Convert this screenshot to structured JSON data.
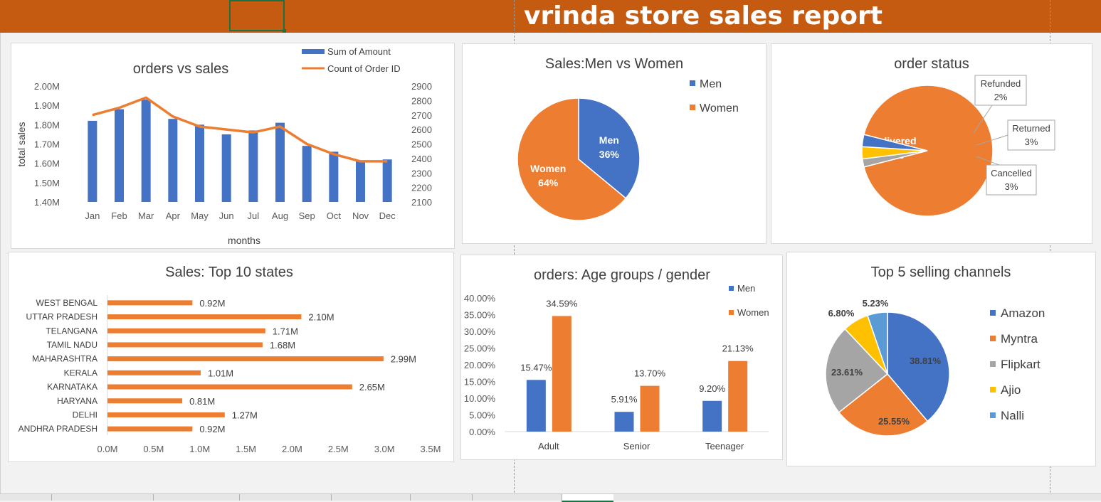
{
  "report": {
    "title": "vrinda store sales report"
  },
  "colors": {
    "banner": "#c55a11",
    "blue": "#4472c4",
    "orange": "#ed7d31",
    "gray": "#a5a5a5",
    "yellow": "#ffc000",
    "lightblue": "#5b9bd5"
  },
  "sheet_tabs": [
    "",
    "",
    "",
    "",
    "",
    "",
    ""
  ],
  "chart_data": [
    {
      "id": "orders-vs-sales",
      "type": "bar",
      "title": "orders vs sales",
      "xlabel": "months",
      "ylabel": "total sales",
      "categories": [
        "Jan",
        "Feb",
        "Mar",
        "Apr",
        "May",
        "Jun",
        "Jul",
        "Aug",
        "Sep",
        "Oct",
        "Nov",
        "Dec"
      ],
      "series": [
        {
          "name": "Sum of Amount",
          "type": "bar",
          "axis": "left",
          "values": [
            1.82,
            1.88,
            1.93,
            1.83,
            1.8,
            1.75,
            1.77,
            1.81,
            1.69,
            1.66,
            1.61,
            1.62
          ]
        },
        {
          "name": "Count of Order ID",
          "type": "line",
          "axis": "right",
          "values": [
            2700,
            2750,
            2820,
            2690,
            2620,
            2600,
            2580,
            2620,
            2500,
            2430,
            2380,
            2380
          ]
        }
      ],
      "ylim": [
        1.4,
        2.0
      ],
      "yticks": [
        "1.40M",
        "1.50M",
        "1.60M",
        "1.70M",
        "1.80M",
        "1.90M",
        "2.00M"
      ],
      "y2lim": [
        2100,
        2900
      ],
      "y2ticks": [
        "2100",
        "2200",
        "2300",
        "2400",
        "2500",
        "2600",
        "2700",
        "2800",
        "2900"
      ],
      "legend": "top-right"
    },
    {
      "id": "sales-men-women",
      "type": "pie",
      "title": "Sales:Men vs Women",
      "labels": [
        "Men",
        "Women"
      ],
      "values": [
        36,
        64
      ],
      "data_labels": [
        "36%",
        "64%"
      ],
      "legend": "right"
    },
    {
      "id": "order-status",
      "type": "pie",
      "title": "order status",
      "labels": [
        "Delivered",
        "Refunded",
        "Returned",
        "Cancelled"
      ],
      "values": [
        92,
        2,
        3,
        3
      ],
      "data_labels": [
        "92%",
        "2%",
        "3%",
        "3%"
      ]
    },
    {
      "id": "top-10-states",
      "type": "bar",
      "orientation": "horizontal",
      "title": "Sales: Top 10 states",
      "categories": [
        "WEST BENGAL",
        "UTTAR PRADESH",
        "TELANGANA",
        "TAMIL NADU",
        "MAHARASHTRA",
        "KERALA",
        "KARNATAKA",
        "HARYANA",
        "DELHI",
        "ANDHRA PRADESH"
      ],
      "values": [
        0.92,
        2.1,
        1.71,
        1.68,
        2.99,
        1.01,
        2.65,
        0.81,
        1.27,
        0.92
      ],
      "data_labels": [
        "0.92M",
        "2.10M",
        "1.71M",
        "1.68M",
        "2.99M",
        "1.01M",
        "2.65M",
        "0.81M",
        "1.27M",
        "0.92M"
      ],
      "xlim": [
        0,
        3.5
      ],
      "xticks": [
        "0.0M",
        "0.5M",
        "1.0M",
        "1.5M",
        "2.0M",
        "2.5M",
        "3.0M",
        "3.5M"
      ]
    },
    {
      "id": "age-groups-gender",
      "type": "bar",
      "title": "orders: Age groups / gender",
      "categories": [
        "Adult",
        "Senior",
        "Teenager"
      ],
      "series": [
        {
          "name": "Men",
          "values": [
            15.47,
            5.91,
            9.2
          ],
          "data_labels": [
            "15.47%",
            "5.91%",
            "9.20%"
          ]
        },
        {
          "name": "Women",
          "values": [
            34.59,
            13.7,
            21.13
          ],
          "data_labels": [
            "34.59%",
            "13.70%",
            "21.13%"
          ]
        }
      ],
      "ylim": [
        0,
        40
      ],
      "yticks": [
        "0.00%",
        "5.00%",
        "10.00%",
        "15.00%",
        "20.00%",
        "25.00%",
        "30.00%",
        "35.00%",
        "40.00%"
      ],
      "legend": "top-right"
    },
    {
      "id": "top-5-channels",
      "type": "pie",
      "title": "Top 5 selling channels",
      "labels": [
        "Amazon",
        "Myntra",
        "Flipkart",
        "Ajio",
        "Nalli"
      ],
      "values": [
        38.81,
        25.55,
        23.61,
        6.8,
        5.23
      ],
      "data_labels": [
        "38.81%",
        "25.55%",
        "23.61%",
        "6.80%",
        "5.23%"
      ],
      "legend": "right"
    }
  ]
}
